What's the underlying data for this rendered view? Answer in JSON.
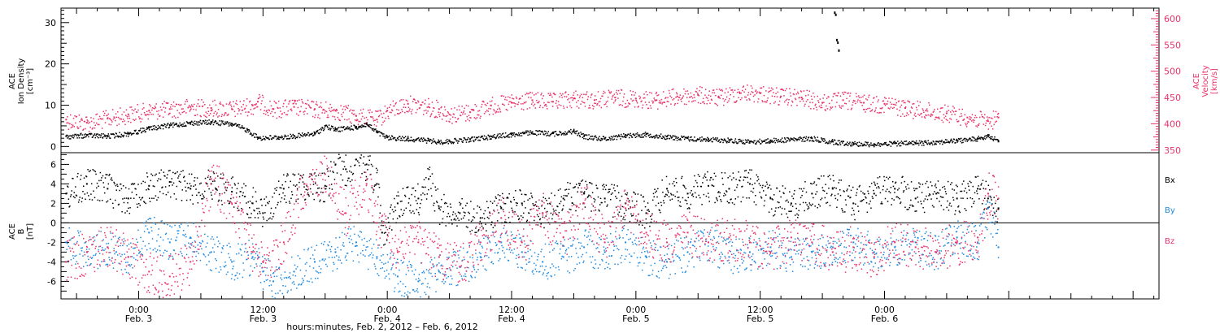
{
  "figure": {
    "xlabel": "hours:minutes, Feb. 2, 2012 – Feb. 6, 2012"
  },
  "colors": {
    "black": "#000000",
    "pink": "#e8336a",
    "blue": "#1e8ae0"
  },
  "chart_data": [
    {
      "type": "scatter",
      "panel": "top",
      "ylabel_left": [
        "ACE",
        "Ion Density",
        "[cm⁻³]"
      ],
      "ylabel_right": [
        "ACE",
        "Velocity",
        "[km/s]"
      ],
      "ylim_left": [
        -1.5,
        33.5
      ],
      "ylim_right": [
        345,
        620
      ],
      "yticks_left": [
        0,
        10,
        20,
        30
      ],
      "yticks_right": [
        350,
        400,
        450,
        500,
        550,
        600
      ],
      "xlim_hours": [
        -7.5,
        98.5
      ],
      "series": [
        {
          "axis": "left",
          "color": "black",
          "points": [
            [
              -7,
              2.5
            ],
            [
              -5,
              2.8
            ],
            [
              -3,
              2.6
            ],
            [
              -1,
              3.2
            ],
            [
              1,
              4.5
            ],
            [
              3,
              5.2
            ],
            [
              5,
              5.8
            ],
            [
              7,
              6.0
            ],
            [
              9,
              5.5
            ],
            [
              10.5,
              4.0
            ],
            [
              11.5,
              2.2
            ],
            [
              13.5,
              2.3
            ],
            [
              15,
              2.6
            ],
            [
              17,
              3.2
            ],
            [
              18,
              5.0
            ],
            [
              19,
              4.2
            ],
            [
              21,
              4.8
            ],
            [
              22,
              5.5
            ],
            [
              23,
              3.5
            ],
            [
              24,
              2.2
            ],
            [
              26,
              2.0
            ],
            [
              28,
              1.5
            ],
            [
              29,
              1.2
            ],
            [
              30,
              1.4
            ],
            [
              32,
              1.8
            ],
            [
              34,
              2.5
            ],
            [
              36,
              3.0
            ],
            [
              38,
              3.5
            ],
            [
              40,
              3.2
            ],
            [
              42,
              3.8
            ],
            [
              43,
              2.5
            ],
            [
              45,
              2.0
            ],
            [
              47,
              2.8
            ],
            [
              49,
              3.0
            ],
            [
              51,
              2.4
            ],
            [
              53,
              2.0
            ],
            [
              55,
              1.8
            ],
            [
              57,
              1.6
            ],
            [
              59,
              1.2
            ],
            [
              61,
              1.5
            ],
            [
              63,
              1.8
            ],
            [
              65,
              2.0
            ],
            [
              67,
              1.2
            ],
            [
              69,
              0.8
            ],
            [
              71,
              0.6
            ],
            [
              73,
              0.8
            ],
            [
              75,
              0.9
            ],
            [
              77,
              1.2
            ],
            [
              79,
              1.5
            ],
            [
              81,
              2.0
            ],
            [
              82,
              2.8
            ],
            [
              83,
              1.2
            ]
          ]
        },
        {
          "axis": "right",
          "color": "pink",
          "points": [
            [
              -7,
              408
            ],
            [
              -5,
              402
            ],
            [
              -3,
              410
            ],
            [
              -1,
              418
            ],
            [
              1,
              425
            ],
            [
              3,
              428
            ],
            [
              5,
              432
            ],
            [
              7,
              430
            ],
            [
              9,
              428
            ],
            [
              11,
              435
            ],
            [
              11.5,
              442
            ],
            [
              13,
              428
            ],
            [
              15,
              432
            ],
            [
              17,
              428
            ],
            [
              19,
              425
            ],
            [
              21,
              415
            ],
            [
              23,
              408
            ],
            [
              24,
              425
            ],
            [
              26,
              438
            ],
            [
              28,
              432
            ],
            [
              29,
              428
            ],
            [
              30,
              418
            ],
            [
              32,
              422
            ],
            [
              34,
              435
            ],
            [
              36,
              440
            ],
            [
              38,
              445
            ],
            [
              40,
              442
            ],
            [
              42,
              448
            ],
            [
              44,
              445
            ],
            [
              46,
              450
            ],
            [
              48,
              448
            ],
            [
              50,
              445
            ],
            [
              52,
              452
            ],
            [
              54,
              455
            ],
            [
              56,
              450
            ],
            [
              58,
              460
            ],
            [
              60,
              458
            ],
            [
              62,
              452
            ],
            [
              64,
              450
            ],
            [
              66,
              440
            ],
            [
              68,
              445
            ],
            [
              70,
              440
            ],
            [
              72,
              438
            ],
            [
              74,
              430
            ],
            [
              76,
              425
            ],
            [
              78,
              420
            ],
            [
              80,
              412
            ],
            [
              82,
              405
            ],
            [
              83,
              412
            ]
          ]
        },
        {
          "axis": "right",
          "color": "black",
          "points": [
            [
              67.2,
              612
            ],
            [
              67.3,
              608
            ],
            [
              67.4,
              560
            ],
            [
              67.5,
              555
            ],
            [
              67.6,
              540
            ]
          ]
        }
      ]
    },
    {
      "type": "scatter",
      "panel": "bottom",
      "ylabel_left": [
        "ACE",
        "B",
        "[nT]"
      ],
      "ylim": [
        -7.8,
        7.2
      ],
      "yticks": [
        -6,
        -4,
        -2,
        0,
        2,
        4,
        6
      ],
      "xlim_hours": [
        -7.5,
        98.5
      ],
      "legend": [
        "Bx",
        "By",
        "Bz"
      ],
      "xticks": [
        {
          "hour": 0,
          "time": "0:00",
          "date": "Feb. 3"
        },
        {
          "hour": 12,
          "time": "12:00",
          "date": "Feb. 3"
        },
        {
          "hour": 24,
          "time": "0:00",
          "date": "Feb. 4"
        },
        {
          "hour": 36,
          "time": "12:00",
          "date": "Feb. 4"
        },
        {
          "hour": 48,
          "time": "0:00",
          "date": "Feb. 5"
        },
        {
          "hour": 60,
          "time": "12:00",
          "date": "Feb. 5"
        },
        {
          "hour": 72,
          "time": "0:00",
          "date": "Feb. 6"
        }
      ],
      "series": [
        {
          "name": "Bx",
          "color": "black",
          "points": [
            [
              -7,
              3.0
            ],
            [
              -5,
              4.0
            ],
            [
              -3,
              3.5
            ],
            [
              -1,
              2.5
            ],
            [
              1,
              3.8
            ],
            [
              3,
              4.2
            ],
            [
              5,
              3.5
            ],
            [
              7,
              4.0
            ],
            [
              9,
              3.2
            ],
            [
              11,
              2.0
            ],
            [
              12,
              1.0
            ],
            [
              14,
              3.5
            ],
            [
              16,
              4.0
            ],
            [
              18,
              3.8
            ],
            [
              19,
              6.0
            ],
            [
              20,
              5.5
            ],
            [
              21,
              6.5
            ],
            [
              22,
              6.0
            ],
            [
              23,
              4.0
            ],
            [
              23.5,
              -1.0
            ],
            [
              25,
              2.0
            ],
            [
              27,
              2.5
            ],
            [
              28,
              4.5
            ],
            [
              29,
              1.5
            ],
            [
              31,
              1.0
            ],
            [
              33,
              0.5
            ],
            [
              35,
              1.5
            ],
            [
              37,
              2.0
            ],
            [
              39,
              1.0
            ],
            [
              41,
              2.5
            ],
            [
              43,
              3.0
            ],
            [
              45,
              2.5
            ],
            [
              47,
              2.0
            ],
            [
              49,
              1.0
            ],
            [
              51,
              3.5
            ],
            [
              53,
              3.0
            ],
            [
              55,
              3.8
            ],
            [
              57,
              3.5
            ],
            [
              59,
              4.0
            ],
            [
              61,
              2.5
            ],
            [
              63,
              2.0
            ],
            [
              65,
              3.0
            ],
            [
              67,
              3.5
            ],
            [
              69,
              2.0
            ],
            [
              71,
              3.0
            ],
            [
              73,
              3.5
            ],
            [
              75,
              2.5
            ],
            [
              77,
              3.0
            ],
            [
              79,
              2.5
            ],
            [
              81,
              3.5
            ],
            [
              82,
              2.5
            ],
            [
              83,
              1.5
            ]
          ]
        },
        {
          "name": "By",
          "color": "blue",
          "points": [
            [
              -7,
              -2.0
            ],
            [
              -5,
              -3.0
            ],
            [
              -3,
              -2.5
            ],
            [
              -1,
              -3.5
            ],
            [
              1,
              -1.0
            ],
            [
              3,
              -2.0
            ],
            [
              5,
              -1.5
            ],
            [
              7,
              -3.0
            ],
            [
              9,
              -4.0
            ],
            [
              11,
              -3.5
            ],
            [
              12,
              -5.0
            ],
            [
              13,
              -6.0
            ],
            [
              15,
              -5.0
            ],
            [
              17,
              -4.0
            ],
            [
              19,
              -3.0
            ],
            [
              21,
              -2.0
            ],
            [
              23,
              -3.5
            ],
            [
              25,
              -5.5
            ],
            [
              27,
              -6.0
            ],
            [
              29,
              -5.0
            ],
            [
              31,
              -4.5
            ],
            [
              33,
              -3.5
            ],
            [
              35,
              -2.0
            ],
            [
              37,
              -3.0
            ],
            [
              39,
              -4.0
            ],
            [
              41,
              -3.5
            ],
            [
              43,
              -2.5
            ],
            [
              45,
              -3.0
            ],
            [
              47,
              -2.0
            ],
            [
              49,
              -3.5
            ],
            [
              51,
              -4.0
            ],
            [
              53,
              -3.0
            ],
            [
              55,
              -2.0
            ],
            [
              57,
              -3.5
            ],
            [
              59,
              -3.0
            ],
            [
              61,
              -2.5
            ],
            [
              63,
              -3.5
            ],
            [
              65,
              -3.0
            ],
            [
              67,
              -2.5
            ],
            [
              69,
              -2.0
            ],
            [
              71,
              -3.0
            ],
            [
              73,
              -2.5
            ],
            [
              75,
              -2.0
            ],
            [
              77,
              -3.0
            ],
            [
              79,
              -1.5
            ],
            [
              81,
              -2.0
            ],
            [
              82,
              1.5
            ],
            [
              83,
              -2.5
            ]
          ]
        },
        {
          "name": "Bz",
          "color": "pink",
          "points": [
            [
              -7,
              -4.0
            ],
            [
              -5,
              -3.0
            ],
            [
              -3,
              -2.5
            ],
            [
              -1,
              -3.5
            ],
            [
              1,
              -5.0
            ],
            [
              3,
              -5.5
            ],
            [
              5,
              -4.0
            ],
            [
              7,
              4.5
            ],
            [
              9,
              2.0
            ],
            [
              11,
              -3.0
            ],
            [
              12,
              -4.0
            ],
            [
              14,
              -2.0
            ],
            [
              16,
              4.0
            ],
            [
              18,
              5.0
            ],
            [
              20,
              1.0
            ],
            [
              22,
              4.0
            ],
            [
              23,
              0.0
            ],
            [
              25,
              -3.0
            ],
            [
              27,
              -2.0
            ],
            [
              29,
              -3.5
            ],
            [
              31,
              -4.5
            ],
            [
              33,
              -2.0
            ],
            [
              35,
              0.5
            ],
            [
              37,
              -2.0
            ],
            [
              39,
              1.0
            ],
            [
              41,
              -1.5
            ],
            [
              43,
              2.0
            ],
            [
              45,
              -2.0
            ],
            [
              47,
              1.5
            ],
            [
              49,
              -1.0
            ],
            [
              51,
              -2.0
            ],
            [
              53,
              -1.0
            ],
            [
              55,
              -2.0
            ],
            [
              57,
              -1.5
            ],
            [
              59,
              -2.0
            ],
            [
              61,
              -3.0
            ],
            [
              63,
              -1.5
            ],
            [
              65,
              -2.0
            ],
            [
              67,
              -3.0
            ],
            [
              69,
              -2.5
            ],
            [
              71,
              -3.5
            ],
            [
              73,
              -2.0
            ],
            [
              75,
              -2.5
            ],
            [
              77,
              -3.0
            ],
            [
              79,
              -2.0
            ],
            [
              81,
              -1.5
            ],
            [
              82,
              3.0
            ],
            [
              83,
              2.5
            ]
          ]
        }
      ]
    }
  ]
}
